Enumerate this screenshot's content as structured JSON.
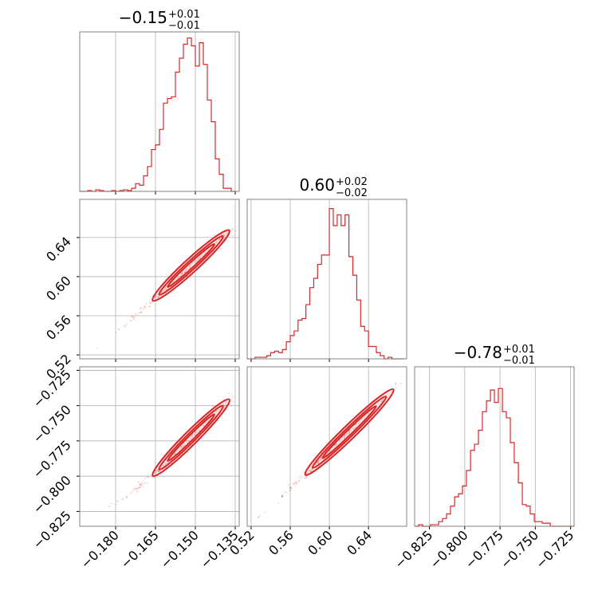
{
  "figure": {
    "background": "#ffffff",
    "line_color": "#d62728",
    "grid_color": "#b0b0b0",
    "axes_edge_color": "#808080"
  },
  "chart_data": [
    {
      "id": "hist-p0",
      "type": "histogram",
      "title": {
        "value": "−0.15",
        "plus": "+0.01",
        "minus": "−0.01"
      },
      "x_range": [
        -0.1935,
        -0.1335
      ],
      "x_ticks": [
        -0.18,
        -0.165,
        -0.15,
        -0.135
      ],
      "x_tick_labels": [
        "−0.180",
        "−0.165",
        "−0.150",
        "−0.135"
      ],
      "y_max": 1.0,
      "bins_x": [
        -0.1935,
        -0.192,
        -0.1905,
        -0.189,
        -0.1875,
        -0.186,
        -0.1845,
        -0.183,
        -0.1815,
        -0.18,
        -0.1785,
        -0.177,
        -0.1755,
        -0.174,
        -0.1725,
        -0.171,
        -0.1695,
        -0.168,
        -0.1665,
        -0.165,
        -0.1635,
        -0.162,
        -0.1605,
        -0.159,
        -0.1575,
        -0.156,
        -0.1545,
        -0.153,
        -0.1515,
        -0.15,
        -0.1485,
        -0.147,
        -0.1455,
        -0.144,
        -0.1425,
        -0.141,
        -0.1395,
        -0.138,
        -0.1365,
        -0.135
      ],
      "counts": [
        0.0,
        0.0,
        0.005,
        0.0,
        0.01,
        0.005,
        0.0,
        0.0,
        0.005,
        0.0,
        0.005,
        0.01,
        0.005,
        0.02,
        0.05,
        0.04,
        0.1,
        0.16,
        0.27,
        0.3,
        0.4,
        0.57,
        0.6,
        0.61,
        0.77,
        0.86,
        0.95,
        0.99,
        0.94,
        0.81,
        0.96,
        0.82,
        0.59,
        0.45,
        0.21,
        0.11,
        0.02,
        0.02,
        0.0
      ],
      "xlabel": "",
      "ylabel": ""
    },
    {
      "id": "contour-p0-p1",
      "type": "scatter",
      "x_range": [
        -0.1935,
        -0.1335
      ],
      "y_range": [
        0.516,
        0.679
      ],
      "x_ticks": [
        -0.18,
        -0.165,
        -0.15,
        -0.135
      ],
      "y_ticks": [
        0.52,
        0.56,
        0.6,
        0.64
      ],
      "y_tick_labels": [
        "0.52",
        "0.56",
        "0.60",
        "0.64"
      ],
      "trend": {
        "x": [
          -0.187,
          -0.174,
          -0.163,
          -0.152,
          -0.142,
          -0.137
        ],
        "y": [
          0.528,
          0.556,
          0.583,
          0.608,
          0.634,
          0.648
        ]
      },
      "xlabel": "",
      "ylabel": ""
    },
    {
      "id": "hist-p1",
      "type": "histogram",
      "title": {
        "value": "0.60",
        "plus": "+0.02",
        "minus": "−0.02"
      },
      "x_range": [
        0.516,
        0.679
      ],
      "x_ticks": [
        0.52,
        0.56,
        0.6,
        0.64
      ],
      "x_tick_labels": [
        "0.52",
        "0.56",
        "0.60",
        "0.64"
      ],
      "y_max": 1.0,
      "bins_x": [
        0.516,
        0.52,
        0.524,
        0.528,
        0.532,
        0.536,
        0.54,
        0.544,
        0.548,
        0.552,
        0.556,
        0.56,
        0.564,
        0.568,
        0.572,
        0.576,
        0.58,
        0.584,
        0.588,
        0.592,
        0.596,
        0.6,
        0.604,
        0.608,
        0.612,
        0.616,
        0.62,
        0.624,
        0.628,
        0.632,
        0.636,
        0.64,
        0.644,
        0.648,
        0.652,
        0.656,
        0.66,
        0.664,
        0.668,
        0.672,
        0.676
      ],
      "counts": [
        0.0,
        0.0,
        0.01,
        0.01,
        0.01,
        0.02,
        0.04,
        0.05,
        0.04,
        0.06,
        0.11,
        0.15,
        0.18,
        0.25,
        0.26,
        0.35,
        0.46,
        0.52,
        0.61,
        0.67,
        0.67,
        0.97,
        0.86,
        0.93,
        0.86,
        0.93,
        0.66,
        0.54,
        0.38,
        0.21,
        0.18,
        0.08,
        0.08,
        0.04,
        0.02,
        0.0,
        0.01,
        0.0,
        0.0,
        0.0
      ],
      "xlabel": "",
      "ylabel": ""
    },
    {
      "id": "contour-p0-p2",
      "type": "scatter",
      "x_range": [
        -0.1935,
        -0.1335
      ],
      "y_range": [
        -0.8355,
        -0.7225
      ],
      "x_ticks": [
        -0.18,
        -0.165,
        -0.15,
        -0.135
      ],
      "x_tick_labels": [
        "−0.180",
        "−0.165",
        "−0.150",
        "−0.135"
      ],
      "y_ticks": [
        -0.825,
        -0.8,
        -0.775,
        -0.75,
        -0.725
      ],
      "y_tick_labels": [
        "−0.825",
        "−0.800",
        "−0.775",
        "−0.750",
        "−0.725"
      ],
      "trend": {
        "x": [
          -0.187,
          -0.174,
          -0.163,
          -0.152,
          -0.142,
          -0.137
        ],
        "y": [
          -0.826,
          -0.812,
          -0.795,
          -0.775,
          -0.757,
          -0.745
        ]
      },
      "xlabel": "",
      "ylabel": ""
    },
    {
      "id": "contour-p1-p2",
      "type": "scatter",
      "x_range": [
        0.516,
        0.679
      ],
      "y_range": [
        -0.8355,
        -0.7225
      ],
      "x_ticks": [
        0.52,
        0.56,
        0.6,
        0.64
      ],
      "x_tick_labels": [
        "0.52",
        "0.56",
        "0.60",
        "0.64"
      ],
      "trend": {
        "x": [
          0.528,
          0.556,
          0.583,
          0.608,
          0.634,
          0.668
        ],
        "y": [
          -0.828,
          -0.812,
          -0.794,
          -0.776,
          -0.758,
          -0.737
        ]
      },
      "xlabel": "",
      "ylabel": ""
    },
    {
      "id": "hist-p2",
      "type": "histogram",
      "title": {
        "value": "−0.78",
        "plus": "+0.01",
        "minus": "−0.01"
      },
      "x_range": [
        -0.8355,
        -0.7225
      ],
      "x_ticks": [
        -0.825,
        -0.8,
        -0.775,
        -0.75,
        -0.725
      ],
      "x_tick_labels": [
        "−0.825",
        "−0.800",
        "−0.775",
        "−0.750",
        "−0.725"
      ],
      "y_max": 1.0,
      "bins_x": [
        -0.8355,
        -0.8327,
        -0.8298,
        -0.827,
        -0.8242,
        -0.8214,
        -0.8185,
        -0.8157,
        -0.8129,
        -0.8101,
        -0.8072,
        -0.8044,
        -0.8016,
        -0.7988,
        -0.7959,
        -0.7931,
        -0.7903,
        -0.7875,
        -0.7846,
        -0.7818,
        -0.779,
        -0.7762,
        -0.7733,
        -0.7705,
        -0.7677,
        -0.7649,
        -0.762,
        -0.7592,
        -0.7564,
        -0.7536,
        -0.7507,
        -0.7479,
        -0.7451,
        -0.7423,
        -0.7394,
        -0.7366,
        -0.7338,
        -0.731,
        -0.7281,
        -0.7253,
        -0.7225
      ],
      "counts": [
        0.0,
        0.01,
        0.0,
        0.0,
        0.01,
        0.01,
        0.03,
        0.05,
        0.08,
        0.13,
        0.19,
        0.21,
        0.26,
        0.36,
        0.49,
        0.53,
        0.62,
        0.74,
        0.81,
        0.88,
        0.8,
        0.89,
        0.74,
        0.7,
        0.54,
        0.41,
        0.28,
        0.14,
        0.13,
        0.08,
        0.03,
        0.03,
        0.02,
        0.02,
        0.0,
        0.0,
        0.0,
        0.0,
        0.0,
        0.0
      ],
      "xlabel": "",
      "ylabel": ""
    }
  ]
}
